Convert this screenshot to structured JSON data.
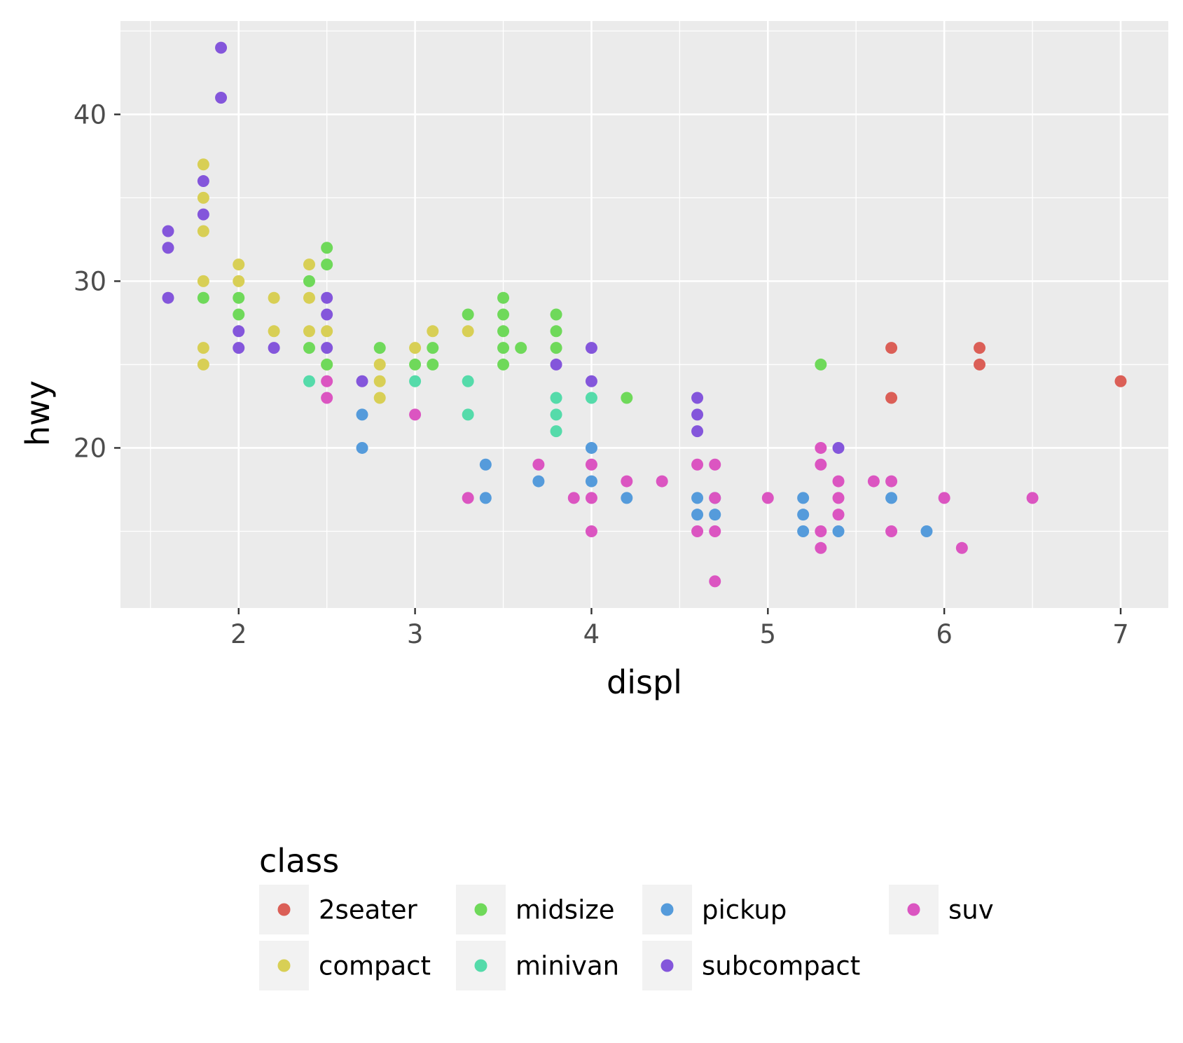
{
  "chart_data": {
    "type": "scatter",
    "title": "",
    "xlabel": "displ",
    "ylabel": "hwy",
    "xlim": [
      1.33,
      7.27
    ],
    "ylim": [
      10.4,
      45.6
    ],
    "x_ticks": [
      2,
      3,
      4,
      5,
      6,
      7
    ],
    "y_ticks": [
      20,
      30,
      40
    ],
    "x_tick_labels": [
      "2",
      "3",
      "4",
      "5",
      "6",
      "7"
    ],
    "y_tick_labels": [
      "20",
      "30",
      "40"
    ],
    "grid": true,
    "legend_position": "bottom",
    "legend_title": "class",
    "series": [
      {
        "name": "2seater",
        "color": "#db5f57",
        "points": [
          [
            5.7,
            26
          ],
          [
            5.7,
            23
          ],
          [
            6.2,
            26
          ],
          [
            6.2,
            25
          ],
          [
            7.0,
            24
          ]
        ]
      },
      {
        "name": "compact",
        "color": "#d8cf55",
        "points": [
          [
            1.8,
            37
          ],
          [
            1.8,
            35
          ],
          [
            1.8,
            33
          ],
          [
            1.8,
            30
          ],
          [
            1.8,
            26
          ],
          [
            1.8,
            25
          ],
          [
            2.0,
            31
          ],
          [
            2.0,
            30
          ],
          [
            2.2,
            29
          ],
          [
            2.2,
            27
          ],
          [
            2.4,
            31
          ],
          [
            2.4,
            29
          ],
          [
            2.4,
            27
          ],
          [
            2.5,
            27
          ],
          [
            2.5,
            25
          ],
          [
            2.8,
            25
          ],
          [
            2.8,
            24
          ],
          [
            2.8,
            23
          ],
          [
            3.0,
            26
          ],
          [
            3.1,
            27
          ],
          [
            3.3,
            27
          ]
        ]
      },
      {
        "name": "midsize",
        "color": "#6fd95a",
        "points": [
          [
            1.8,
            29
          ],
          [
            2.0,
            29
          ],
          [
            2.0,
            28
          ],
          [
            2.4,
            30
          ],
          [
            2.4,
            26
          ],
          [
            2.5,
            32
          ],
          [
            2.5,
            31
          ],
          [
            2.5,
            25
          ],
          [
            2.8,
            26
          ],
          [
            3.0,
            25
          ],
          [
            3.1,
            26
          ],
          [
            3.1,
            25
          ],
          [
            3.3,
            28
          ],
          [
            3.5,
            29
          ],
          [
            3.5,
            28
          ],
          [
            3.5,
            27
          ],
          [
            3.5,
            26
          ],
          [
            3.5,
            25
          ],
          [
            3.6,
            26
          ],
          [
            3.8,
            28
          ],
          [
            3.8,
            27
          ],
          [
            3.8,
            26
          ],
          [
            4.2,
            23
          ],
          [
            5.3,
            25
          ]
        ]
      },
      {
        "name": "minivan",
        "color": "#55dbaa",
        "points": [
          [
            2.4,
            24
          ],
          [
            3.0,
            24
          ],
          [
            3.3,
            24
          ],
          [
            3.3,
            22
          ],
          [
            3.8,
            23
          ],
          [
            3.8,
            22
          ],
          [
            3.8,
            21
          ],
          [
            4.0,
            23
          ]
        ]
      },
      {
        "name": "pickup",
        "color": "#559bdb",
        "points": [
          [
            2.7,
            22
          ],
          [
            2.7,
            20
          ],
          [
            3.4,
            19
          ],
          [
            3.4,
            17
          ],
          [
            3.7,
            18
          ],
          [
            4.0,
            20
          ],
          [
            4.0,
            18
          ],
          [
            4.2,
            17
          ],
          [
            4.6,
            17
          ],
          [
            4.6,
            16
          ],
          [
            4.7,
            17
          ],
          [
            4.7,
            16
          ],
          [
            5.2,
            17
          ],
          [
            5.2,
            16
          ],
          [
            5.2,
            15
          ],
          [
            5.4,
            15
          ],
          [
            5.7,
            17
          ],
          [
            5.9,
            15
          ]
        ]
      },
      {
        "name": "subcompact",
        "color": "#8456db",
        "points": [
          [
            1.6,
            33
          ],
          [
            1.6,
            32
          ],
          [
            1.6,
            29
          ],
          [
            1.8,
            36
          ],
          [
            1.8,
            34
          ],
          [
            1.9,
            44
          ],
          [
            1.9,
            41
          ],
          [
            2.0,
            27
          ],
          [
            2.0,
            26
          ],
          [
            2.2,
            26
          ],
          [
            2.5,
            29
          ],
          [
            2.5,
            28
          ],
          [
            2.5,
            26
          ],
          [
            2.7,
            24
          ],
          [
            3.8,
            25
          ],
          [
            4.0,
            26
          ],
          [
            4.0,
            24
          ],
          [
            4.6,
            23
          ],
          [
            4.6,
            22
          ],
          [
            4.6,
            21
          ],
          [
            5.4,
            20
          ]
        ]
      },
      {
        "name": "suv",
        "color": "#db55c1",
        "points": [
          [
            2.5,
            24
          ],
          [
            2.5,
            23
          ],
          [
            3.0,
            22
          ],
          [
            3.3,
            17
          ],
          [
            3.7,
            19
          ],
          [
            3.9,
            17
          ],
          [
            4.0,
            19
          ],
          [
            4.0,
            17
          ],
          [
            4.0,
            15
          ],
          [
            4.2,
            18
          ],
          [
            4.4,
            18
          ],
          [
            4.6,
            19
          ],
          [
            4.6,
            15
          ],
          [
            4.7,
            19
          ],
          [
            4.7,
            17
          ],
          [
            4.7,
            15
          ],
          [
            4.7,
            12
          ],
          [
            5.0,
            17
          ],
          [
            5.3,
            20
          ],
          [
            5.3,
            19
          ],
          [
            5.3,
            15
          ],
          [
            5.3,
            14
          ],
          [
            5.4,
            18
          ],
          [
            5.4,
            17
          ],
          [
            5.4,
            16
          ],
          [
            5.6,
            18
          ],
          [
            5.7,
            18
          ],
          [
            5.7,
            15
          ],
          [
            6.0,
            17
          ],
          [
            6.1,
            14
          ],
          [
            6.5,
            17
          ]
        ]
      }
    ]
  }
}
